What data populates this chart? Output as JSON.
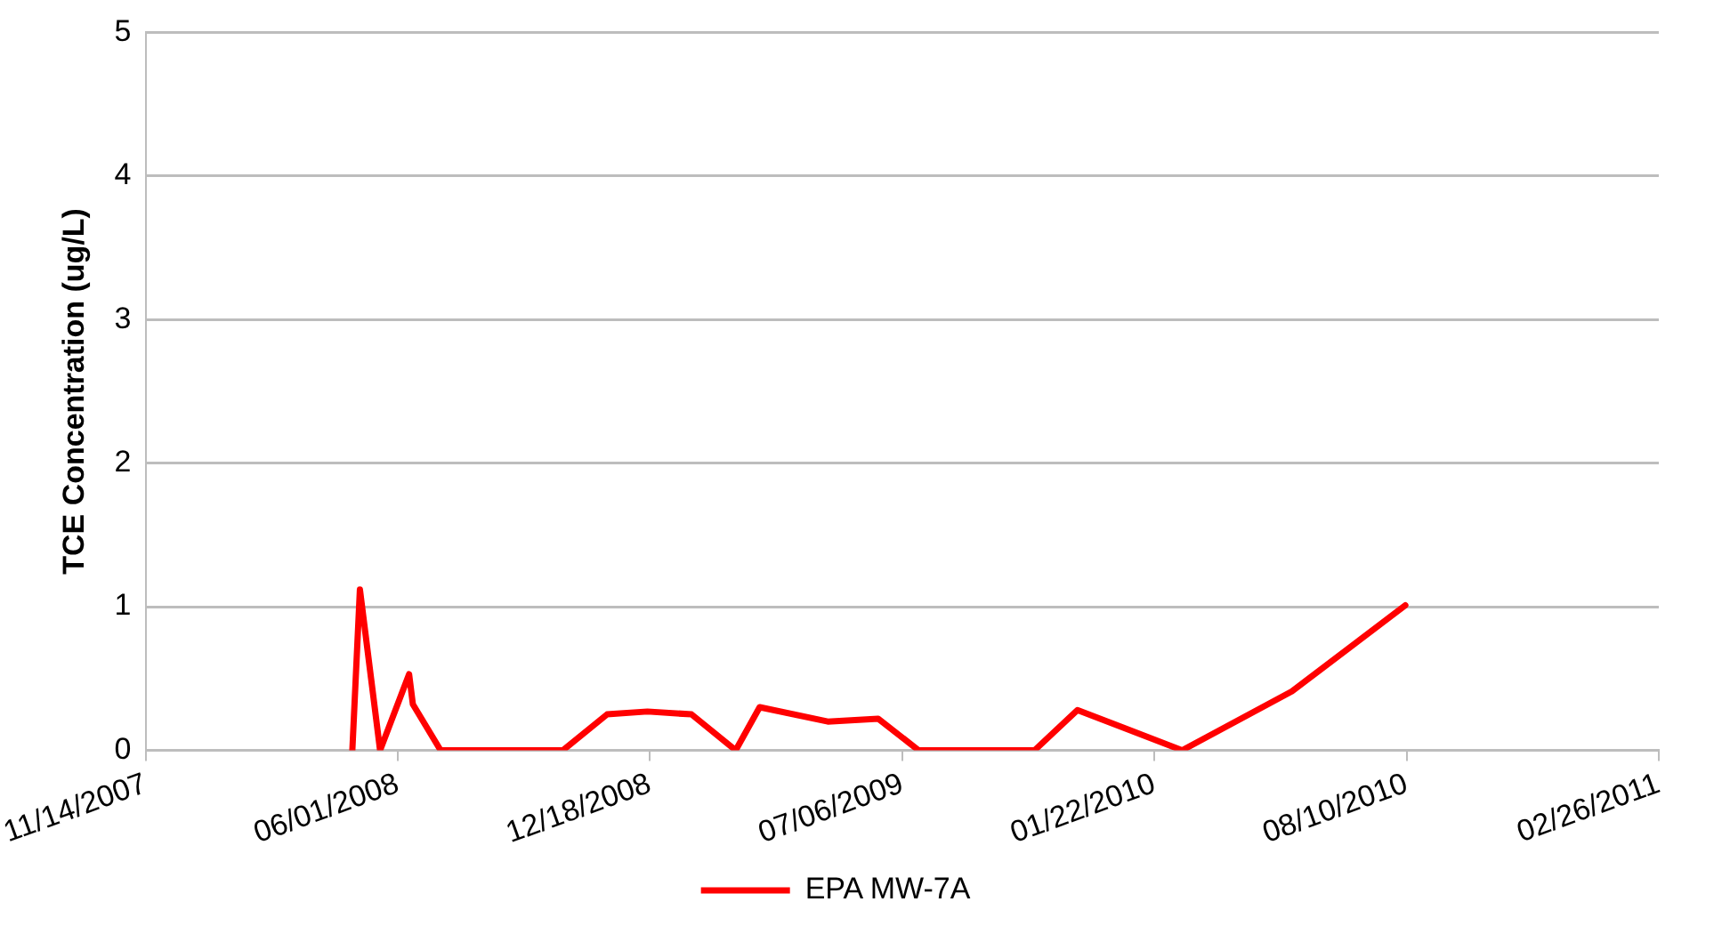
{
  "chart_data": {
    "type": "line",
    "ylabel": "TCE Concentration (ug/L)",
    "x": [
      "2008-04-26",
      "2008-05-02",
      "2008-05-18",
      "2008-06-10",
      "2008-06-13",
      "2008-07-05",
      "2008-10-10",
      "2008-11-14",
      "2008-12-16",
      "2009-01-20",
      "2009-02-24",
      "2009-03-15",
      "2009-05-08",
      "2009-06-17",
      "2009-07-19",
      "2009-10-19",
      "2009-11-22",
      "2010-02-13",
      "2010-05-11",
      "2010-08-09"
    ],
    "series": [
      {
        "name": "EPA MW-7A",
        "color": "#ff0000",
        "values": [
          0,
          1.12,
          0,
          0.53,
          0.32,
          0,
          0,
          0.25,
          0.27,
          0.25,
          0,
          0.3,
          0.2,
          0.22,
          0,
          0,
          0.28,
          0,
          0.41,
          1.01
        ]
      }
    ],
    "xlim": [
      "2007-11-14",
      "2011-02-26"
    ],
    "xticks": [
      {
        "value": "2007-11-14",
        "label": "11/14/2007"
      },
      {
        "value": "2008-06-01",
        "label": "06/01/2008"
      },
      {
        "value": "2008-12-18",
        "label": "12/18/2008"
      },
      {
        "value": "2009-07-06",
        "label": "07/06/2009"
      },
      {
        "value": "2010-01-22",
        "label": "01/22/2010"
      },
      {
        "value": "2010-08-10",
        "label": "08/10/2010"
      },
      {
        "value": "2011-02-26",
        "label": "02/26/2011"
      }
    ],
    "ylim": [
      0,
      5
    ],
    "yticks": [
      0,
      1,
      2,
      3,
      4,
      5
    ],
    "grid": "y",
    "legend": "bottom",
    "marker": "none",
    "line_style": "solid"
  }
}
